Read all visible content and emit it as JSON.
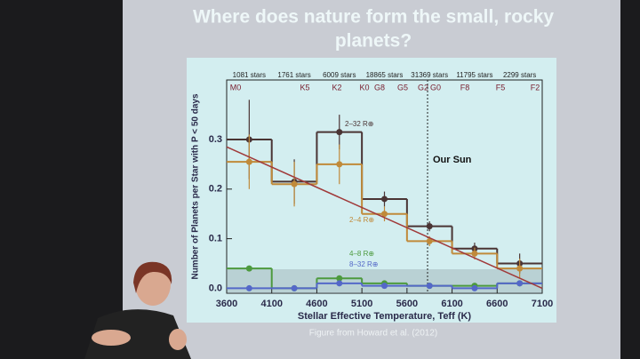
{
  "chart_data": {
    "type": "histogram",
    "title": "Where does nature form the small, rocky planets?",
    "xlabel": "Stellar Effective Temperature, Teff (K)",
    "ylabel": "Number of Planets per Star with P < 50 days",
    "caption": "Figure from Howard et al. (2012)",
    "annotation": "Our Sun",
    "bins": [
      3600,
      4100,
      4600,
      5100,
      5600,
      6100,
      6600,
      7100
    ],
    "star_counts": [
      "1081 stars",
      "1761 stars",
      "6009 stars",
      "18865 stars",
      "31369 stars",
      "11795 stars",
      "2299 stars"
    ],
    "spectral_types": [
      "M0",
      "K5",
      "K2",
      "K0",
      "G8",
      "G5",
      "G2",
      "G0",
      "F8",
      "F5",
      "F2"
    ],
    "series": [
      {
        "name": "2–32 R⊕",
        "color": "#4a3434",
        "values": [
          0.3,
          0.215,
          0.315,
          0.18,
          0.125,
          0.08,
          0.05
        ],
        "errors": [
          0.08,
          0.045,
          0.035,
          0.015,
          0.01,
          0.012,
          0.02
        ]
      },
      {
        "name": "2–4 R⊕",
        "color": "#c08a3a",
        "values": [
          0.255,
          0.21,
          0.25,
          0.15,
          0.095,
          0.07,
          0.04
        ],
        "errors": [
          0.055,
          0.045,
          0.04,
          0.015,
          0.01,
          0.012,
          0.02
        ]
      },
      {
        "name": "4–8 R⊕",
        "color": "#4d9a3e",
        "values": [
          0.04,
          0.0,
          0.02,
          0.01,
          0.005,
          0.005,
          0.01
        ]
      },
      {
        "name": "8–32 R⊕",
        "color": "#5468c8",
        "values": [
          0.0,
          0.0,
          0.01,
          0.005,
          0.005,
          0.0,
          0.01
        ]
      }
    ],
    "fit": {
      "color": "#a03a3a",
      "x": [
        3600,
        7100
      ],
      "values": [
        0.285,
        0.0
      ]
    },
    "xlim": [
      3600,
      7100
    ],
    "xticks": [
      3600,
      4100,
      4600,
      5100,
      5600,
      6100,
      6600,
      7100
    ],
    "ylim": [
      -0.01,
      0.42
    ],
    "yticks": [
      {
        "value": 0,
        "label": "0.0"
      },
      0.1,
      0.2,
      0.3
    ]
  }
}
